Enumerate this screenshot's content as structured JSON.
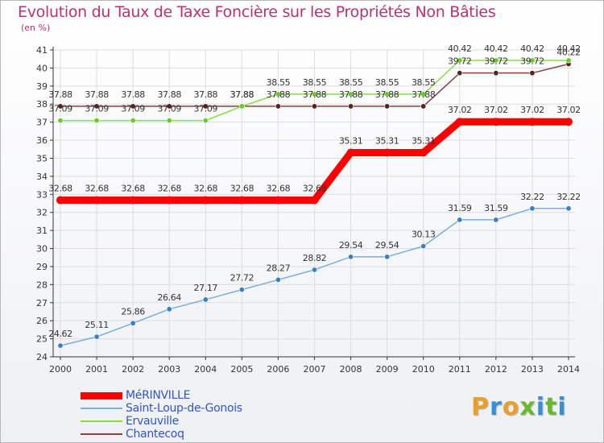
{
  "header": {
    "title": "Evolution du Taux de Taxe Foncière sur les Propriétés Non Bâties",
    "subtitle": "(en %)"
  },
  "colors": {
    "title": "#c0306e",
    "legend_text": "#3355cc",
    "axis": "#333333",
    "grid": "#dddddd"
  },
  "logo": {
    "text": "Proxiti",
    "letters": [
      {
        "char": "P",
        "color": "#e8a02a"
      },
      {
        "char": "r",
        "color": "#3a8fd0"
      },
      {
        "char": "o",
        "color": "#e8a02a"
      },
      {
        "char": "x",
        "color": "#6ab82e"
      },
      {
        "char": "i",
        "color": "#3a8fd0"
      },
      {
        "char": "t",
        "color": "#6ab82e"
      },
      {
        "char": "i",
        "color": "#3a8fd0"
      }
    ]
  },
  "chart_data": {
    "type": "line",
    "title": "Evolution du Taux de Taxe Foncière sur les Propriétés Non Bâties",
    "ylabel": "(en %)",
    "xlabel": "",
    "ylim": [
      24,
      41
    ],
    "yticks": [
      "24",
      "25",
      "26",
      "27",
      "28",
      "29",
      "30",
      "31",
      "32",
      "33",
      "34",
      "35",
      "36",
      "37",
      "38",
      "39",
      "40",
      "41"
    ],
    "grid": true,
    "legend_position": "bottom-left",
    "x": [
      "2000",
      "2001",
      "2002",
      "2003",
      "2004",
      "2005",
      "2006",
      "2007",
      "2008",
      "2009",
      "2010",
      "2011",
      "2012",
      "2013",
      "2014"
    ],
    "series": [
      {
        "name": "MéRINVILLE",
        "color": "#ff0000",
        "marker": "#ff0000",
        "thick": true,
        "values": [
          32.68,
          32.68,
          32.68,
          32.68,
          32.68,
          32.68,
          32.68,
          32.68,
          35.31,
          35.31,
          35.31,
          37.02,
          37.02,
          37.02,
          37.02
        ],
        "labels": [
          "32.68",
          "32.68",
          "32.68",
          "32.68",
          "32.68",
          "32.68",
          "32.68",
          "32.68",
          "35.31",
          "35.31",
          "35.31",
          "37.02",
          "37.02",
          "37.02",
          "37.02"
        ]
      },
      {
        "name": "Saint-Loup-de-Gonois",
        "color": "#7aaedc",
        "marker": "#3a7fc4",
        "thick": false,
        "values": [
          24.62,
          25.11,
          25.86,
          26.64,
          27.17,
          27.72,
          28.27,
          28.82,
          29.54,
          29.54,
          30.13,
          31.59,
          31.59,
          32.22,
          32.22
        ],
        "labels": [
          "24.62",
          "25.11",
          "25.86",
          "26.64",
          "27.17",
          "27.72",
          "28.27",
          "28.82",
          "29.54",
          "29.54",
          "30.13",
          "31.59",
          "31.59",
          "32.22",
          "32.22"
        ]
      },
      {
        "name": "Ervauville",
        "color": "#88dd44",
        "marker": "#66cc22",
        "thick": false,
        "values": [
          37.09,
          37.09,
          37.09,
          37.09,
          37.09,
          37.88,
          38.55,
          38.55,
          38.55,
          38.55,
          38.55,
          40.42,
          40.42,
          40.42,
          40.42
        ],
        "labels": [
          "37.09",
          "37.09",
          "37.09",
          "37.09",
          "37.09",
          "37.88",
          "38.55",
          "38.55",
          "38.55",
          "38.55",
          "38.55",
          "40.42",
          "40.42",
          "40.42",
          "40.42"
        ]
      },
      {
        "name": "Chantecoq",
        "color": "#8a4040",
        "marker": "#552222",
        "thick": false,
        "values": [
          37.88,
          37.88,
          37.88,
          37.88,
          37.88,
          37.88,
          37.88,
          37.88,
          37.88,
          37.88,
          37.88,
          39.72,
          39.72,
          39.72,
          40.22
        ],
        "labels": [
          "37.88",
          "37.88",
          "37.88",
          "37.88",
          "37.88",
          "37.88",
          "37.88",
          "37.88",
          "37.88",
          "37.88",
          "37.88",
          "39.72",
          "39.72",
          "39.72",
          "40.22"
        ]
      }
    ]
  }
}
